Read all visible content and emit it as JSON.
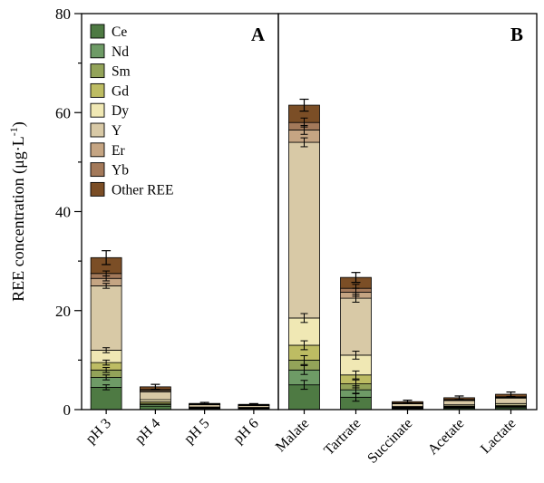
{
  "chart_data": {
    "type": "bar",
    "stacked": true,
    "title": "",
    "xlabel": "",
    "ylabel": "REE concentration (μg·L⁻¹)",
    "ylabel_base": "REE concentration (μg·L",
    "ylabel_sup": "-1",
    "ylabel_close": ")",
    "ylim": [
      0,
      80
    ],
    "yticks_major": [
      0,
      20,
      40,
      60,
      80
    ],
    "ytick_minor_step": 10,
    "legend_position": "upper-left-inside-panel-A",
    "grid": false,
    "series": [
      "Ce",
      "Nd",
      "Sm",
      "Gd",
      "Dy",
      "Y",
      "Er",
      "Yb",
      "Other REE"
    ],
    "colors": [
      "#4e7a43",
      "#6e9b66",
      "#93a359",
      "#bdbc63",
      "#f0e8b4",
      "#d8c9a6",
      "#c5a583",
      "#a3795a",
      "#7b4e26"
    ],
    "panels": [
      {
        "label": "A",
        "categories": [
          "pH 3",
          "pH 4",
          "pH 5",
          "pH 6"
        ],
        "values": [
          [
            4.5,
            2.0,
            1.5,
            1.5,
            2.5,
            13.0,
            1.5,
            1.0,
            3.2
          ],
          [
            0.7,
            0.3,
            0.25,
            0.3,
            0.45,
            1.6,
            0.25,
            0.2,
            0.55
          ],
          [
            0.18,
            0.08,
            0.07,
            0.08,
            0.12,
            0.45,
            0.07,
            0.05,
            0.15
          ],
          [
            0.15,
            0.07,
            0.06,
            0.07,
            0.1,
            0.38,
            0.06,
            0.05,
            0.12
          ]
        ],
        "totals": [
          30.7,
          4.6,
          1.25,
          1.06
        ],
        "total_errors": [
          1.4,
          0.5,
          0.2,
          0.15
        ],
        "segment_errors": [
          0.5,
          0,
          0,
          0
        ]
      },
      {
        "label": "B",
        "categories": [
          "Malate",
          "Tartrate",
          "Succinate",
          "Acetate",
          "Lactate"
        ],
        "values": [
          [
            5.0,
            3.0,
            2.0,
            3.0,
            5.5,
            35.5,
            2.5,
            1.5,
            3.5
          ],
          [
            2.5,
            1.5,
            1.2,
            1.8,
            4.0,
            11.5,
            1.2,
            0.8,
            2.2
          ],
          [
            0.2,
            0.1,
            0.08,
            0.1,
            0.15,
            0.55,
            0.08,
            0.06,
            0.28
          ],
          [
            0.3,
            0.15,
            0.12,
            0.15,
            0.25,
            0.85,
            0.12,
            0.09,
            0.37
          ],
          [
            0.35,
            0.18,
            0.15,
            0.2,
            0.35,
            1.1,
            0.15,
            0.12,
            0.5
          ]
        ],
        "totals": [
          61.5,
          26.7,
          1.6,
          2.4,
          3.1
        ],
        "total_errors": [
          1.2,
          1.0,
          0.3,
          0.35,
          0.45
        ],
        "segment_errors": [
          0.9,
          0.8,
          0,
          0,
          0
        ]
      }
    ]
  }
}
